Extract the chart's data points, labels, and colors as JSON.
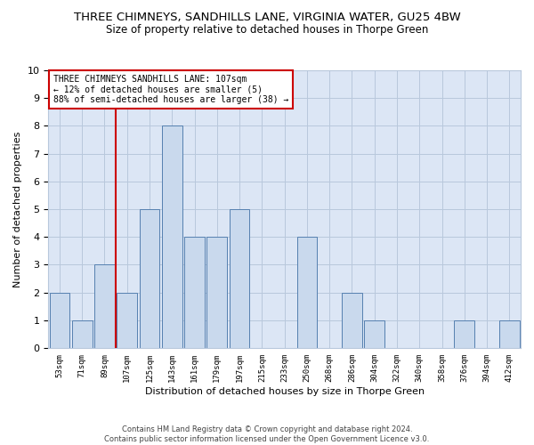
{
  "title": "THREE CHIMNEYS, SANDHILLS LANE, VIRGINIA WATER, GU25 4BW",
  "subtitle": "Size of property relative to detached houses in Thorpe Green",
  "xlabel": "Distribution of detached houses by size in Thorpe Green",
  "ylabel": "Number of detached properties",
  "footnote": "Contains HM Land Registry data © Crown copyright and database right 2024.\nContains public sector information licensed under the Open Government Licence v3.0.",
  "categories": [
    "53sqm",
    "71sqm",
    "89sqm",
    "107sqm",
    "125sqm",
    "143sqm",
    "161sqm",
    "179sqm",
    "197sqm",
    "215sqm",
    "233sqm",
    "250sqm",
    "268sqm",
    "286sqm",
    "304sqm",
    "322sqm",
    "340sqm",
    "358sqm",
    "376sqm",
    "394sqm",
    "412sqm"
  ],
  "values": [
    2,
    1,
    3,
    2,
    5,
    8,
    4,
    4,
    5,
    0,
    0,
    4,
    0,
    2,
    1,
    0,
    0,
    0,
    1,
    0,
    1
  ],
  "bar_color": "#c9d9ed",
  "bar_edge_color": "#5580b0",
  "highlight_index": 3,
  "highlight_line_color": "#cc0000",
  "legend_text": "THREE CHIMNEYS SANDHILLS LANE: 107sqm\n← 12% of detached houses are smaller (5)\n88% of semi-detached houses are larger (38) →",
  "legend_box_color": "#cc0000",
  "ylim": [
    0,
    10
  ],
  "yticks": [
    0,
    1,
    2,
    3,
    4,
    5,
    6,
    7,
    8,
    9,
    10
  ],
  "grid_color": "#b8c8dc",
  "bg_color": "#dce6f5",
  "title_fontsize": 9.5,
  "subtitle_fontsize": 8.5
}
